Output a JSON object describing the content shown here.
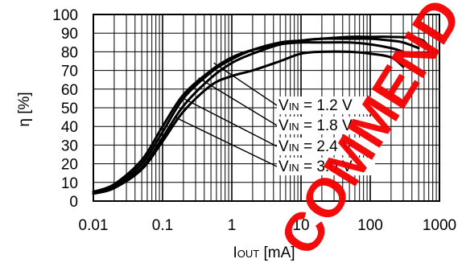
{
  "watermark": "COMMEND",
  "chart_data": {
    "type": "line",
    "xlabel": "IOUT [mA]",
    "xlabel_main": "I",
    "xlabel_sub": "OUT",
    "xlabel_unit": " [mA]",
    "ylabel": "η [%]",
    "xscale": "log",
    "xlim": [
      0.01,
      1000
    ],
    "ylim": [
      0,
      100
    ],
    "grid": true,
    "x_ticks": [
      0.01,
      0.1,
      1,
      10,
      100,
      1000
    ],
    "x_tick_labels": [
      "0.01",
      "0.1",
      "1",
      "10",
      "100",
      "1000"
    ],
    "y_ticks": [
      0,
      10,
      20,
      30,
      40,
      50,
      60,
      70,
      80,
      90,
      100
    ],
    "y_tick_labels": [
      "0",
      "10",
      "20",
      "30",
      "40",
      "50",
      "60",
      "70",
      "80",
      "90",
      "100"
    ],
    "series": [
      {
        "name": "VIN = 1.2 V",
        "label_main": "V",
        "label_sub": "IN",
        "label_rest": " = 1.2 V",
        "x": [
          0.01,
          0.02,
          0.05,
          0.1,
          0.2,
          0.5,
          1,
          2,
          5,
          10,
          20,
          50,
          100,
          200,
          300
        ],
        "y": [
          5,
          9,
          22,
          40,
          57,
          70,
          77,
          81,
          84,
          85,
          85,
          85,
          84,
          82,
          80
        ]
      },
      {
        "name": "VIN = 1.8 V",
        "label_main": "V",
        "label_sub": "IN",
        "label_rest": " = 1.8 V",
        "x": [
          0.01,
          0.02,
          0.05,
          0.1,
          0.2,
          0.5,
          1,
          2,
          5,
          10,
          20,
          50,
          100,
          200,
          300,
          500
        ],
        "y": [
          4,
          8,
          20,
          37,
          55,
          69,
          76,
          81,
          85,
          86,
          87,
          87,
          87,
          86,
          85,
          82
        ]
      },
      {
        "name": "VIN = 2.4 V",
        "label_main": "V",
        "label_sub": "IN",
        "label_rest": " = 2.4 V",
        "x": [
          0.01,
          0.02,
          0.05,
          0.1,
          0.2,
          0.5,
          1,
          2,
          5,
          10,
          20,
          50,
          100,
          200,
          500,
          700
        ],
        "y": [
          4,
          7,
          18,
          34,
          51,
          66,
          74,
          79,
          84,
          86,
          87,
          88,
          88,
          88,
          87,
          83
        ]
      },
      {
        "name": "VIN = 3.0 V",
        "label_main": "V",
        "label_sub": "IN",
        "label_rest": " = 3.0 V",
        "x": [
          0.01,
          0.02,
          0.05,
          0.1,
          0.2,
          0.5,
          1,
          2,
          5,
          10,
          20,
          50,
          100,
          200,
          300
        ],
        "y": [
          4,
          7,
          17,
          32,
          48,
          62,
          67,
          70,
          75,
          79,
          80,
          80,
          79,
          77,
          72
        ]
      }
    ]
  }
}
